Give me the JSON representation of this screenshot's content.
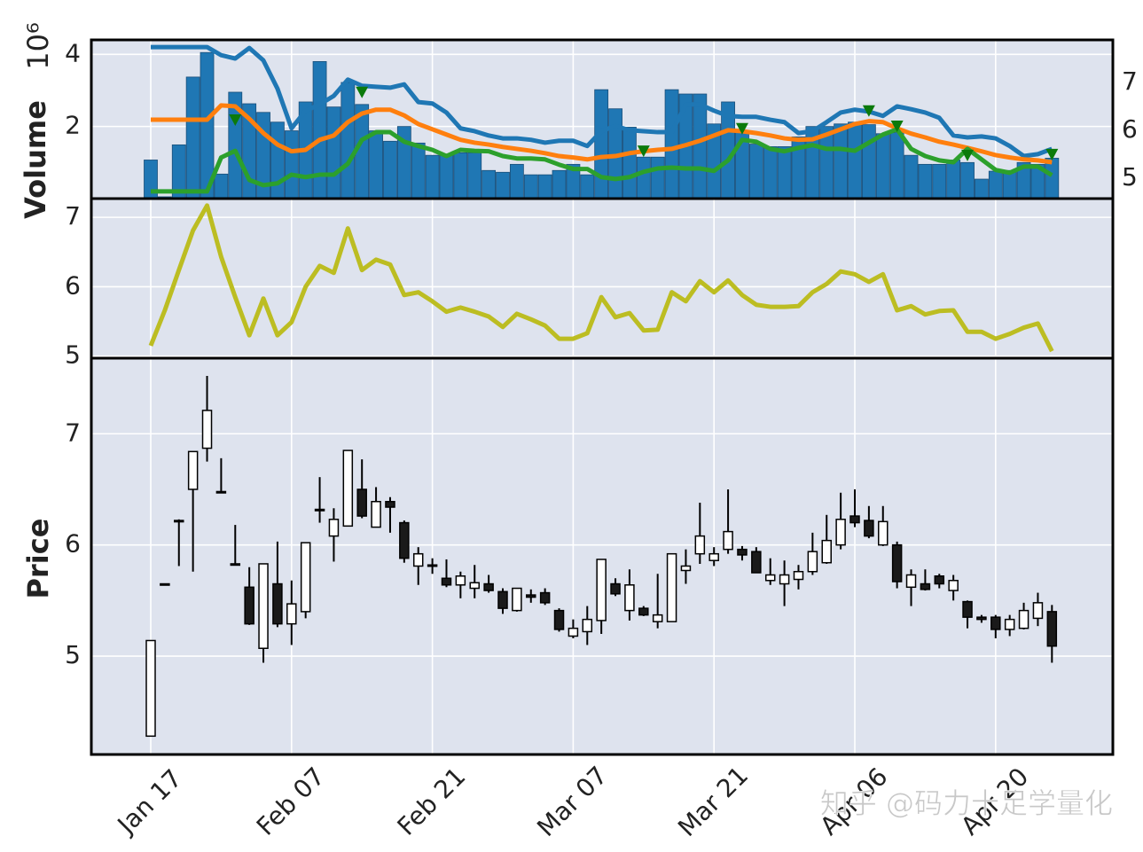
{
  "chart_data": [
    {
      "type": "bar",
      "ylabel": "Volume",
      "offset_label": "10⁶",
      "color": "#1f77b4",
      "values": [
        1.07,
        0.05,
        1.49,
        3.37,
        4.05,
        0.68,
        2.95,
        2.63,
        2.39,
        2.12,
        1.88,
        2.68,
        3.8,
        2.54,
        3.22,
        2.61,
        1.88,
        1.59,
        2.0,
        1.54,
        1.2,
        1.2,
        1.27,
        1.27,
        0.78,
        0.73,
        0.95,
        0.66,
        0.66,
        0.78,
        0.95,
        0.66,
        3.02,
        2.49,
        1.98,
        1.15,
        1.15,
        3.02,
        2.9,
        2.9,
        2.07,
        2.68,
        1.88,
        1.51,
        1.44,
        1.44,
        1.71,
        2.0,
        2.0,
        2.07,
        2.12,
        2.05,
        1.8,
        1.83,
        1.2,
        0.95,
        0.95,
        1.07,
        1.0,
        0.54,
        0.76,
        0.78,
        1.0,
        0.95,
        1.12
      ],
      "ylim": [
        0,
        4.4
      ],
      "yticks": [
        2,
        4
      ],
      "y2lim": [
        4.57,
        7.89
      ],
      "y2ticks": [
        5,
        6,
        7
      ],
      "grid": true,
      "series": [
        {
          "type": "line",
          "axis": "y2",
          "color": "#1f77b4",
          "values": [
            7.74,
            7.74,
            7.74,
            7.74,
            7.74,
            7.57,
            7.5,
            7.72,
            7.46,
            6.87,
            6.04,
            6.41,
            6.54,
            6.72,
            7.06,
            6.93,
            6.91,
            6.89,
            6.96,
            6.59,
            6.56,
            6.37,
            6.04,
            5.98,
            5.89,
            5.83,
            5.83,
            5.8,
            5.74,
            5.78,
            5.78,
            5.67,
            5.98,
            6.09,
            6.0,
            5.98,
            5.96,
            5.96,
            6.54,
            6.54,
            6.41,
            6.3,
            6.28,
            6.28,
            6.22,
            6.17,
            5.94,
            5.98,
            6.17,
            6.37,
            6.43,
            6.39,
            6.3,
            6.5,
            6.44,
            6.37,
            6.26,
            5.89,
            5.85,
            5.87,
            5.83,
            5.67,
            5.46,
            5.5,
            5.61
          ]
        },
        {
          "type": "line",
          "axis": "y2",
          "color": "#ff7f0e",
          "values": [
            6.22,
            6.22,
            6.22,
            6.22,
            6.22,
            6.52,
            6.5,
            6.24,
            5.94,
            5.7,
            5.56,
            5.59,
            5.8,
            5.89,
            6.17,
            6.35,
            6.43,
            6.43,
            6.31,
            6.13,
            6.02,
            5.91,
            5.8,
            5.74,
            5.7,
            5.65,
            5.61,
            5.57,
            5.52,
            5.46,
            5.43,
            5.39,
            5.44,
            5.46,
            5.52,
            5.56,
            5.59,
            5.61,
            5.69,
            5.78,
            5.89,
            6.0,
            5.98,
            5.94,
            5.89,
            5.83,
            5.8,
            5.81,
            5.91,
            6.02,
            6.13,
            6.19,
            6.17,
            6.04,
            5.93,
            5.85,
            5.76,
            5.7,
            5.63,
            5.56,
            5.48,
            5.43,
            5.39,
            5.37,
            5.33
          ]
        },
        {
          "type": "line",
          "axis": "y2",
          "color": "#2ca02c",
          "values": [
            4.72,
            4.72,
            4.72,
            4.72,
            4.72,
            5.43,
            5.57,
            4.96,
            4.85,
            4.89,
            5.07,
            5.02,
            5.07,
            5.07,
            5.3,
            5.8,
            5.96,
            5.96,
            5.76,
            5.67,
            5.59,
            5.46,
            5.59,
            5.57,
            5.56,
            5.46,
            5.41,
            5.41,
            5.39,
            5.28,
            5.19,
            5.19,
            5.02,
            4.98,
            5.02,
            5.13,
            5.2,
            5.22,
            5.2,
            5.2,
            5.15,
            5.37,
            5.8,
            5.76,
            5.61,
            5.56,
            5.63,
            5.69,
            5.61,
            5.61,
            5.57,
            5.74,
            5.91,
            6.02,
            5.61,
            5.46,
            5.37,
            5.33,
            5.61,
            5.39,
            5.17,
            5.11,
            5.24,
            5.24,
            5.06
          ]
        },
        {
          "type": "scatter",
          "axis": "y2",
          "color": "#0b7a0b",
          "values": [
            null,
            null,
            null,
            null,
            null,
            null,
            6.22,
            null,
            null,
            null,
            null,
            null,
            null,
            null,
            null,
            6.8,
            null,
            null,
            null,
            null,
            null,
            null,
            null,
            null,
            null,
            null,
            null,
            null,
            null,
            null,
            null,
            null,
            null,
            null,
            null,
            5.57,
            null,
            null,
            null,
            null,
            null,
            null,
            6.04,
            null,
            null,
            null,
            null,
            null,
            null,
            null,
            null,
            6.41,
            null,
            6.09,
            null,
            null,
            null,
            null,
            5.48,
            null,
            null,
            null,
            null,
            null,
            5.5
          ]
        }
      ]
    },
    {
      "type": "line",
      "color": "#bcbd22",
      "ylim": [
        4.97,
        7.27
      ],
      "yticks": [
        5,
        6,
        7
      ],
      "grid": true,
      "values": [
        5.15,
        5.66,
        6.24,
        6.81,
        7.17,
        6.43,
        5.85,
        5.3,
        5.83,
        5.3,
        5.49,
        6.0,
        6.3,
        6.2,
        6.84,
        6.24,
        6.39,
        6.32,
        5.88,
        5.92,
        5.79,
        5.64,
        5.7,
        5.64,
        5.57,
        5.42,
        5.61,
        5.53,
        5.44,
        5.25,
        5.25,
        5.33,
        5.85,
        5.56,
        5.62,
        5.37,
        5.38,
        5.92,
        5.79,
        6.08,
        5.92,
        6.09,
        5.88,
        5.74,
        5.71,
        5.71,
        5.72,
        5.92,
        6.04,
        6.22,
        6.18,
        6.07,
        6.18,
        5.66,
        5.72,
        5.6,
        5.65,
        5.66,
        5.35,
        5.35,
        5.25,
        5.32,
        5.41,
        5.47,
        5.07
      ]
    },
    {
      "type": "candlestick",
      "ylabel": "Price",
      "ylim": [
        4.115,
        7.68
      ],
      "yticks": [
        5,
        6,
        7
      ],
      "grid": true,
      "up_color": "#ffffff",
      "down_color": "#1a1a1a",
      "categories": [
        "Jan 17",
        null,
        null,
        null,
        null,
        null,
        null,
        null,
        null,
        null,
        "Feb 07",
        null,
        null,
        null,
        null,
        null,
        null,
        null,
        null,
        null,
        "Feb 21",
        null,
        null,
        null,
        null,
        null,
        null,
        null,
        null,
        null,
        "Mar 07",
        null,
        null,
        null,
        null,
        null,
        null,
        null,
        null,
        null,
        "Mar 21",
        null,
        null,
        null,
        null,
        null,
        null,
        null,
        null,
        null,
        "Apr 06",
        null,
        null,
        null,
        null,
        null,
        null,
        null,
        null,
        null,
        "Apr 20",
        null,
        null,
        null,
        null
      ],
      "open": [
        4.28,
        5.65,
        6.21,
        6.5,
        6.87,
        6.48,
        5.83,
        5.62,
        5.07,
        5.65,
        5.29,
        5.4,
        6.32,
        6.08,
        6.17,
        6.5,
        6.16,
        6.39,
        6.2,
        5.81,
        5.82,
        5.7,
        5.64,
        5.61,
        5.65,
        5.58,
        5.41,
        5.55,
        5.57,
        5.41,
        5.18,
        5.22,
        5.32,
        5.65,
        5.41,
        5.43,
        5.31,
        5.31,
        5.77,
        5.92,
        5.86,
        5.96,
        5.96,
        5.94,
        5.68,
        5.65,
        5.69,
        5.76,
        5.84,
        6.0,
        6.26,
        6.22,
        6.0,
        6.0,
        5.62,
        5.65,
        5.72,
        5.59,
        5.49,
        5.35,
        5.35,
        5.24,
        5.25,
        5.34,
        5.4
      ],
      "high": [
        5.14,
        5.65,
        6.23,
        6.84,
        7.52,
        6.78,
        6.18,
        5.8,
        5.83,
        6.03,
        5.68,
        6.02,
        6.61,
        6.33,
        6.85,
        6.77,
        6.52,
        6.43,
        6.22,
        5.98,
        5.88,
        5.87,
        5.76,
        5.82,
        5.73,
        5.61,
        5.61,
        5.6,
        5.61,
        5.43,
        5.33,
        5.45,
        5.87,
        5.7,
        5.78,
        5.45,
        5.74,
        5.92,
        5.96,
        6.38,
        5.98,
        6.5,
        5.99,
        5.98,
        5.88,
        5.86,
        5.82,
        6.11,
        6.27,
        6.47,
        6.5,
        6.35,
        6.35,
        6.03,
        5.78,
        5.78,
        5.74,
        5.73,
        5.5,
        5.37,
        5.37,
        5.37,
        5.48,
        5.57,
        5.46
      ],
      "low": [
        4.28,
        5.65,
        5.81,
        5.76,
        6.75,
        6.47,
        5.83,
        5.28,
        4.94,
        5.26,
        5.1,
        5.34,
        6.2,
        5.85,
        6.17,
        6.24,
        6.16,
        6.11,
        5.84,
        5.64,
        5.74,
        5.62,
        5.52,
        5.52,
        5.57,
        5.38,
        5.4,
        5.48,
        5.46,
        5.22,
        5.16,
        5.1,
        5.2,
        5.54,
        5.32,
        5.36,
        5.25,
        5.31,
        5.65,
        5.83,
        5.81,
        5.92,
        5.86,
        5.75,
        5.64,
        5.45,
        5.6,
        5.73,
        5.83,
        5.96,
        6.16,
        6.06,
        5.99,
        5.61,
        5.45,
        5.59,
        5.61,
        5.5,
        5.25,
        5.3,
        5.16,
        5.18,
        5.24,
        5.27,
        4.94
      ],
      "close": [
        5.14,
        5.65,
        6.22,
        6.84,
        7.21,
        6.48,
        5.83,
        5.29,
        5.83,
        5.29,
        5.47,
        6.02,
        6.31,
        6.23,
        6.85,
        6.26,
        6.39,
        6.34,
        5.88,
        5.92,
        5.81,
        5.64,
        5.72,
        5.66,
        5.59,
        5.43,
        5.61,
        5.53,
        5.48,
        5.24,
        5.25,
        5.33,
        5.87,
        5.56,
        5.64,
        5.37,
        5.37,
        5.92,
        5.81,
        6.08,
        5.92,
        6.12,
        5.91,
        5.75,
        5.73,
        5.73,
        5.76,
        5.94,
        6.04,
        6.23,
        6.2,
        6.08,
        6.21,
        5.67,
        5.73,
        5.6,
        5.65,
        5.68,
        5.35,
        5.33,
        5.24,
        5.33,
        5.41,
        5.48,
        5.09
      ]
    }
  ],
  "watermark": "知乎 @码力十足学量化"
}
